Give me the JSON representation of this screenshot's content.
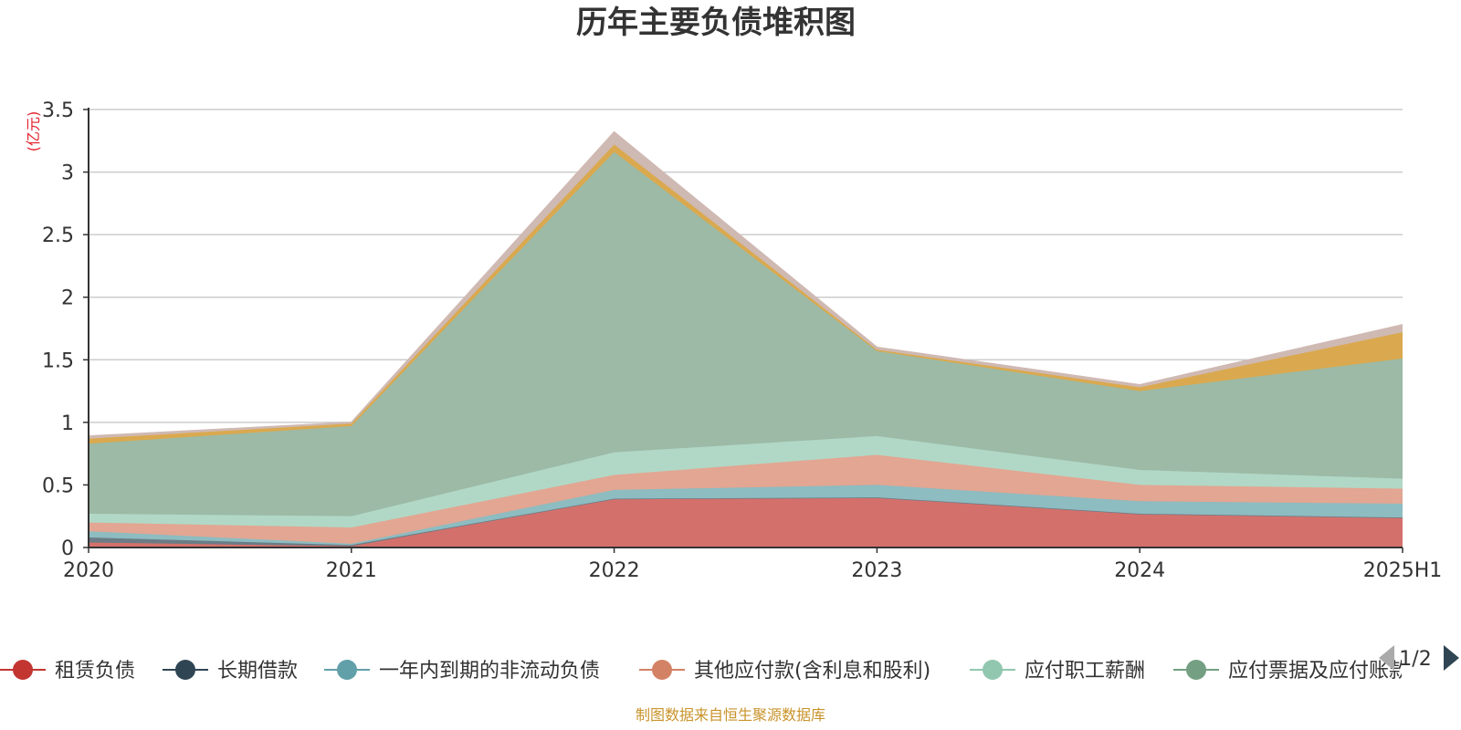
{
  "chart_data": {
    "type": "area",
    "stacked": true,
    "title": "历年主要负债堆积图",
    "ylabel": "(亿元)",
    "ylim": [
      0,
      3.5
    ],
    "yticks": [
      "0",
      "0.5",
      "1",
      "1.5",
      "2",
      "2.5",
      "3",
      "3.5"
    ],
    "categories": [
      "2020",
      "2021",
      "2022",
      "2023",
      "2024",
      "2025H1"
    ],
    "grid": true,
    "legend_position": "bottom",
    "legend_page": "1/2",
    "series": [
      {
        "name": "租赁负债",
        "color": "#c23531",
        "fill": "#d4706b",
        "values": [
          0.04,
          0.01,
          0.39,
          0.4,
          0.27,
          0.24
        ]
      },
      {
        "name": "长期借款",
        "color": "#2f4554",
        "fill": "#6b7c86",
        "values": [
          0.04,
          0.01,
          0.0,
          0.0,
          0.0,
          0.0
        ]
      },
      {
        "name": "一年内到期的非流动负债",
        "color": "#61a0a8",
        "fill": "#8dbcc1",
        "values": [
          0.05,
          0.01,
          0.07,
          0.1,
          0.1,
          0.11
        ]
      },
      {
        "name": "其他应付款(含利息和股利)",
        "color": "#d48265",
        "fill": "#e2a692",
        "values": [
          0.07,
          0.13,
          0.12,
          0.24,
          0.13,
          0.12
        ]
      },
      {
        "name": "应付职工薪酬",
        "color": "#91c7ae",
        "fill": "#b1d8c6",
        "values": [
          0.07,
          0.09,
          0.18,
          0.15,
          0.12,
          0.08
        ]
      },
      {
        "name": "应付票据及应付账款",
        "color": "#749f83",
        "fill": "#9cbaa6",
        "values": [
          0.56,
          0.72,
          2.4,
          0.68,
          0.63,
          0.96
        ]
      },
      {
        "name": "",
        "color": "#ca8622",
        "fill": "#daa94f",
        "values": [
          0.04,
          0.02,
          0.06,
          0.01,
          0.03,
          0.21
        ]
      },
      {
        "name": "",
        "color": "#bda29a",
        "fill": "#cfb9b3",
        "values": [
          0.02,
          0.01,
          0.1,
          0.02,
          0.02,
          0.06
        ]
      }
    ]
  },
  "footer": {
    "source_text": "制图数据来自恒生聚源数据库"
  }
}
